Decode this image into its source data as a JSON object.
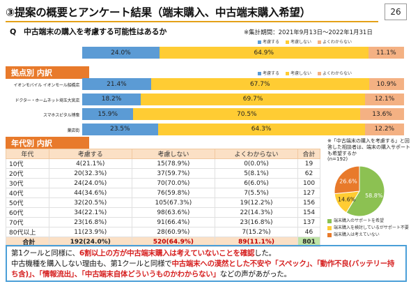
{
  "header": {
    "title": "③提案の概要とアンケート結果（端末購入、中古端末購入希望）",
    "page_number": "26"
  },
  "question": "Q　中古端末の購入を考慮する可能性はあるか",
  "period": "※集計期間：2021年9月13日～2022年1月31日",
  "colors": {
    "consider": "#5b9bd5",
    "not_consider": "#ffcc33",
    "unknown": "#f4b183",
    "accent_orange": "#e87a2b",
    "pie_not_consider": "#8cc152",
    "pie_unknown": "#e87a2b",
    "pie_consider": "#ffcc33"
  },
  "legend": {
    "consider": "考慮する",
    "not_consider": "考慮しない",
    "unknown": "よくわからない"
  },
  "sections": {
    "store": "拠点別 内訳",
    "age": "年代別 内訳"
  },
  "chart_data": [
    {
      "type": "bar",
      "orientation": "horizontal",
      "stacked": true,
      "categories": [
        "全体"
      ],
      "series": [
        {
          "name": "考慮する",
          "values": [
            24.0
          ],
          "labels": [
            "24.0%"
          ]
        },
        {
          "name": "考慮しない",
          "values": [
            64.9
          ],
          "labels": [
            "64.9%"
          ]
        },
        {
          "name": "よくわからない",
          "values": [
            11.1
          ],
          "labels": [
            "11.1%"
          ]
        }
      ],
      "xlim": [
        0,
        100
      ],
      "legend": "top-right"
    },
    {
      "type": "bar",
      "orientation": "horizontal",
      "stacked": true,
      "categories": [
        "イオンモバイル イオンモール船橋店",
        "ドクター・ホームネット埼玉大宮店",
        "スマホスピタル博衆",
        "薬店街"
      ],
      "series": [
        {
          "name": "考慮する",
          "values": [
            21.4,
            18.2,
            15.9,
            23.5
          ],
          "labels": [
            "21.4%",
            "18.2%",
            "15.9%",
            "23.5%"
          ]
        },
        {
          "name": "考慮しない",
          "values": [
            67.7,
            69.7,
            70.5,
            64.3
          ],
          "labels": [
            "67.7%",
            "69.7%",
            "70.5%",
            "64.3%"
          ]
        },
        {
          "name": "よくわからない",
          "values": [
            10.9,
            12.1,
            13.6,
            12.2
          ],
          "labels": [
            "10.9%",
            "12.1%",
            "13.6%",
            "12.2%"
          ]
        }
      ],
      "xlim": [
        0,
        100
      ],
      "legend": "top-right"
    },
    {
      "type": "table",
      "columns": [
        "年代",
        "考慮する",
        "考慮しない",
        "よくわからない",
        "合計"
      ],
      "rows": [
        [
          "10代",
          "4(21.1%)",
          "15(78.9%)",
          "0(0.0%)",
          "19"
        ],
        [
          "20代",
          "20(32.3%)",
          "37(59.7%)",
          "5(8.1%)",
          "62"
        ],
        [
          "30代",
          "24(24.0%)",
          "70(70.0%)",
          "6(6.0%)",
          "100"
        ],
        [
          "40代",
          "44(34.6%)",
          "76(59.8%)",
          "7(5.5%)",
          "127"
        ],
        [
          "50代",
          "32(20.5%)",
          "105(67.3%)",
          "19(12.2%)",
          "156"
        ],
        [
          "60代",
          "34(22.1%)",
          "98(63.6%)",
          "22(14.3%)",
          "154"
        ],
        [
          "70代",
          "23(16.8%)",
          "91(66.4%)",
          "23(16.8%)",
          "137"
        ],
        [
          "80代以上",
          "11(23.9%)",
          "28(60.9%)",
          "7(15.2%)",
          "46"
        ]
      ],
      "total": [
        "合計",
        "192(24.0%)",
        "520(64.9%)",
        "89(11.1%)",
        "801"
      ]
    },
    {
      "type": "pie",
      "slices": [
        {
          "label": "端末購入のサポートを希望",
          "value": 58.8,
          "display": "58.8%"
        },
        {
          "label": "端末購入を検討しているがサポート不要",
          "value": 14.6,
          "display": "14.6%"
        },
        {
          "label": "端末購入は考えていない",
          "value": 26.6,
          "display": "26.6%"
        }
      ],
      "note": "※「中古端末の購入を考慮する」と回答した相談者は、端末の購入サポートも希望するか",
      "n": "(n=192)",
      "legend": "bottom"
    }
  ],
  "conclusion": {
    "l1a": "第1クールと同様に、",
    "l1b": "6割以上の方が中古端末購入は考えていないことを確認",
    "l1c": "した。",
    "l2a": "中古機種を購入しない理由も、第1クールと同様で",
    "l2b": "中古端末への漠然とした不安や「スペック」、「動作不良(バッテリー持ち含)」、「情報流出」、「中古端末自体どういうものかわからない」",
    "l2c": "などの声があがった。"
  }
}
